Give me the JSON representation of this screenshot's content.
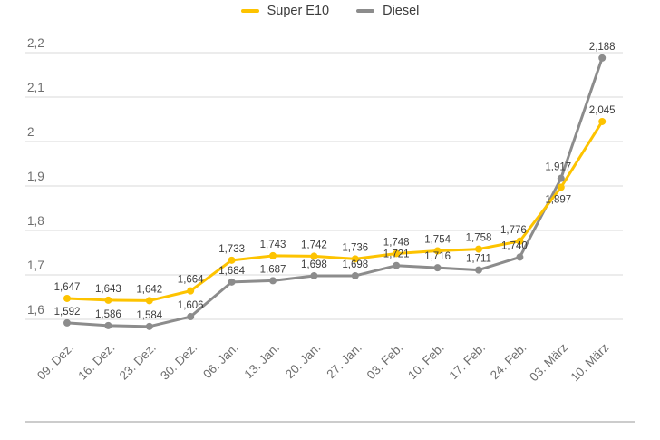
{
  "legend": {
    "items": [
      {
        "label": "Super E10",
        "color": "#FDC300"
      },
      {
        "label": "Diesel",
        "color": "#8C8C8C"
      }
    ]
  },
  "chart_data": {
    "type": "line",
    "title": "",
    "xlabel": "",
    "ylabel": "",
    "categories": [
      "09. Dez.",
      "16. Dez.",
      "23. Dez.",
      "30. Dez.",
      "06. Jan.",
      "13. Jan.",
      "20. Jan.",
      "27. Jan.",
      "03. Feb.",
      "10. Feb.",
      "17. Feb.",
      "24. Feb.",
      "03. März",
      "10. März"
    ],
    "series": [
      {
        "name": "Super E10",
        "color": "#FDC300",
        "values": [
          1.647,
          1.643,
          1.642,
          1.664,
          1.733,
          1.743,
          1.742,
          1.736,
          1.748,
          1.754,
          1.758,
          1.776,
          1.897,
          2.045
        ],
        "labels": [
          "1,647",
          "1,643",
          "1,642",
          "1,664",
          "1,733",
          "1,743",
          "1,742",
          "1,736",
          "1,748",
          "1,754",
          "1,758",
          "1,776",
          "1,897",
          "2,045"
        ]
      },
      {
        "name": "Diesel",
        "color": "#8C8C8C",
        "values": [
          1.592,
          1.586,
          1.584,
          1.606,
          1.684,
          1.687,
          1.698,
          1.698,
          1.721,
          1.716,
          1.711,
          1.74,
          1.917,
          2.188
        ],
        "labels": [
          "1,592",
          "1,586",
          "1,584",
          "1,606",
          "1,684",
          "1,687",
          "1,698",
          "1,698",
          "1,721",
          "1,716",
          "1,711",
          "1,740",
          "1,917",
          "2,188"
        ]
      }
    ],
    "y_ticks": [
      "2,2",
      "2,1",
      "2",
      "1,9",
      "1,8",
      "1,7",
      "1,6"
    ],
    "y_tick_values": [
      2.2,
      2.1,
      2.0,
      1.9,
      1.8,
      1.7,
      1.6
    ],
    "ylim": [
      1.6,
      2.2
    ],
    "grid": true,
    "legend_position": "top",
    "colors": {
      "grid_line": "#D9D9D9",
      "axis_label": "#6E6E6E",
      "data_label": "#3C3C3C",
      "divider": "#CCCCCC",
      "background": "#FFFFFF"
    }
  }
}
